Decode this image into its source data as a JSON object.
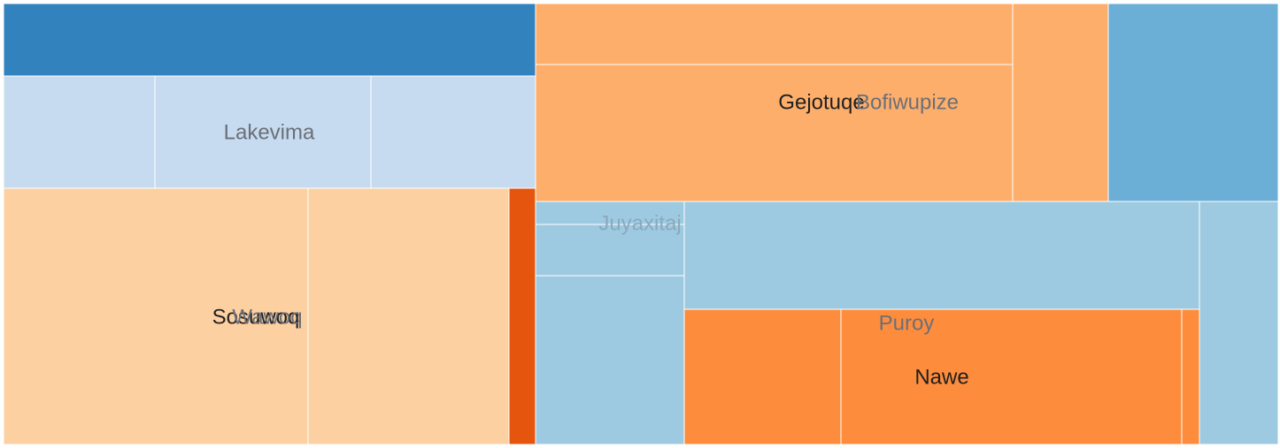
{
  "chart_data": {
    "type": "treemap",
    "title": "",
    "colors": {
      "dark_blue": "#3182bd",
      "mid_blue": "#6baed6",
      "light_blue": "#9ecae1",
      "pale_blue": "#c6dbef",
      "dark_orange": "#e6550d",
      "mid_orange": "#fd8d3c",
      "light_orange": "#fdae6b",
      "pale_orange": "#fdd0a2"
    },
    "labels": [
      {
        "text": "Lakevima",
        "style": "soft"
      },
      {
        "text": "Sosuwoq",
        "style": "bold"
      },
      {
        "text": "Wawoq",
        "style": "soft"
      },
      {
        "text": "Gejotuqe",
        "style": "bold"
      },
      {
        "text": "Bofiwupize",
        "style": "soft"
      },
      {
        "text": "Juyaxitaj",
        "style": "faint"
      },
      {
        "text": "Puroy",
        "style": "soft"
      },
      {
        "text": "Nawe",
        "style": "bold"
      }
    ],
    "cells": [
      {
        "color": "dark_blue",
        "value": 496
      },
      {
        "color": "pale_blue",
        "value": 218
      },
      {
        "color": "pale_blue",
        "value": 310
      },
      {
        "color": "pale_blue",
        "value": 236
      },
      {
        "color": "pale_orange",
        "value": 994
      },
      {
        "color": "pale_orange",
        "value": 653
      },
      {
        "color": "dark_orange",
        "value": 86
      },
      {
        "color": "light_orange",
        "value": 377
      },
      {
        "color": "light_orange",
        "value": 830
      },
      {
        "color": "light_orange",
        "value": 244
      },
      {
        "color": "mid_blue",
        "value": 430
      },
      {
        "color": "light_blue",
        "value": 43
      },
      {
        "color": "light_blue",
        "value": 97
      },
      {
        "color": "light_blue",
        "value": 321
      },
      {
        "color": "light_blue",
        "value": 706
      },
      {
        "color": "mid_orange",
        "value": 266
      },
      {
        "color": "mid_orange",
        "value": 587
      },
      {
        "color": "mid_orange",
        "value": 31
      },
      {
        "color": "light_blue",
        "value": 226
      }
    ]
  }
}
